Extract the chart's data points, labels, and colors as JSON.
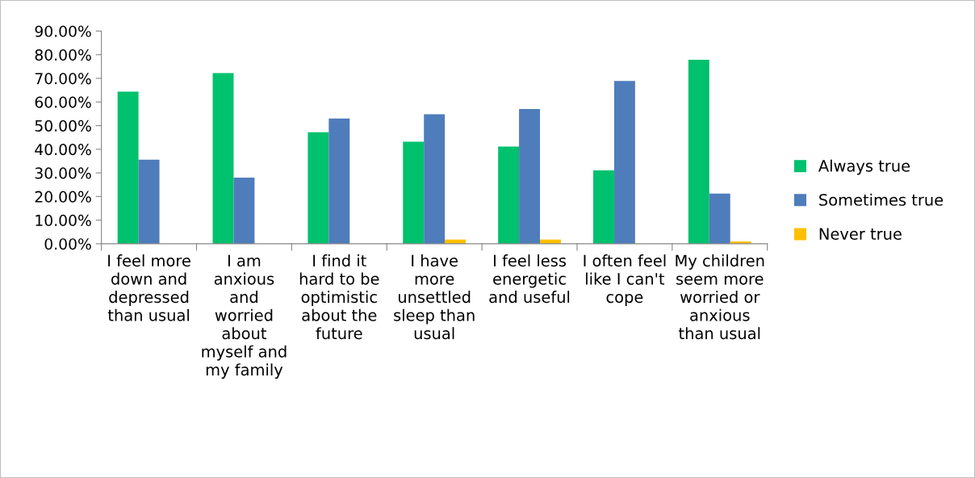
{
  "chart_data": {
    "type": "bar",
    "categories": [
      "I feel more down and depressed than usual",
      "I am anxious and worried about myself and my family",
      "I find it hard to be optimistic about the future",
      "I have more unsettled sleep than usual",
      "I feel less energetic and useful",
      "I often feel like I can't cope",
      "My children seem more worried or anxious than usual"
    ],
    "series": [
      {
        "name": "Always true",
        "color": "#00c16e",
        "values": [
          64.4,
          72.2,
          47.2,
          43.2,
          41.1,
          31.1,
          77.9
        ]
      },
      {
        "name": "Sometimes true",
        "color": "#4f7dbb",
        "values": [
          35.6,
          28.0,
          53.0,
          54.8,
          57.0,
          68.9,
          21.2
        ]
      },
      {
        "name": "Never true",
        "color": "#ffc000",
        "values": [
          0,
          0,
          0,
          1.8,
          1.8,
          0,
          1.0
        ]
      }
    ],
    "ylim": [
      0,
      90
    ],
    "yticks": [
      {
        "value": 0,
        "label": "0.00%"
      },
      {
        "value": 10,
        "label": "10.00%"
      },
      {
        "value": 20,
        "label": "20.00%"
      },
      {
        "value": 30,
        "label": "30.00%"
      },
      {
        "value": 40,
        "label": "40.00%"
      },
      {
        "value": 50,
        "label": "50.00%"
      },
      {
        "value": 60,
        "label": "60.00%"
      },
      {
        "value": 70,
        "label": "70.00%"
      },
      {
        "value": 80,
        "label": "80.00%"
      },
      {
        "value": 90,
        "label": "90.00%"
      }
    ],
    "grid": false,
    "legend": "right"
  }
}
